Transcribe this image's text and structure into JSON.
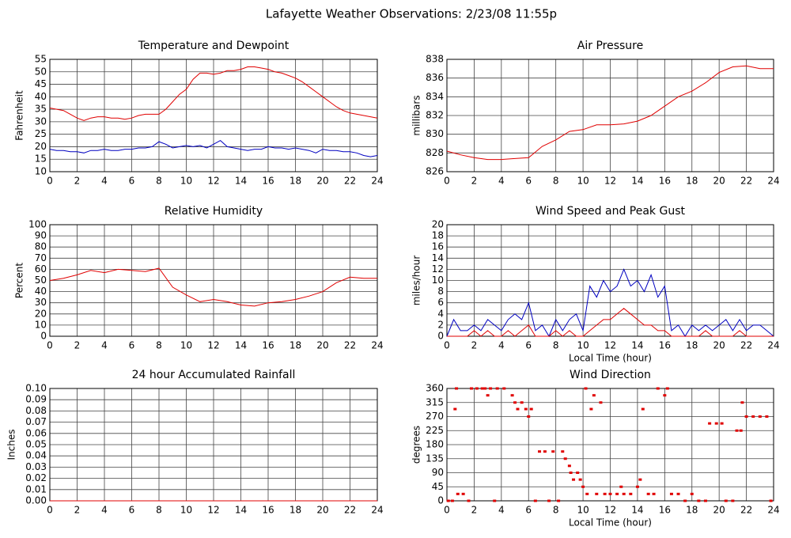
{
  "title": "Lafayette Weather Observations: 2/23/08 11:55p",
  "chart_data": [
    {
      "type": "line",
      "title": "Temperature and Dewpoint",
      "y_label": "Fahrenheit",
      "x": [
        0,
        0.5,
        1,
        1.5,
        2,
        2.5,
        3,
        3.5,
        4,
        4.5,
        5,
        5.5,
        6,
        6.5,
        7,
        7.5,
        8,
        8.5,
        9,
        9.5,
        10,
        10.5,
        11,
        11.5,
        12,
        12.5,
        13,
        13.5,
        14,
        14.5,
        15,
        15.5,
        16,
        16.5,
        17,
        17.5,
        18,
        18.5,
        19,
        19.5,
        20,
        20.5,
        21,
        21.5,
        22,
        22.5,
        23,
        23.5,
        24
      ],
      "xlim": [
        0,
        24
      ],
      "xticks": [
        0,
        2,
        4,
        6,
        8,
        10,
        12,
        14,
        16,
        18,
        20,
        22,
        24
      ],
      "ylim": [
        10,
        55
      ],
      "yticks": [
        10,
        15,
        20,
        25,
        30,
        35,
        40,
        45,
        50,
        55
      ],
      "grid": true,
      "series": [
        {
          "color": "#e00000",
          "values": [
            35.5,
            35,
            34.5,
            33,
            31.5,
            30.5,
            31.5,
            32,
            32,
            31.5,
            31.5,
            31,
            31.5,
            32.5,
            33,
            33,
            33,
            35,
            38,
            41,
            43,
            47,
            49.5,
            49.5,
            49,
            49.5,
            50.5,
            50.5,
            51,
            52,
            52,
            51.5,
            51,
            50,
            49.5,
            48.5,
            47.5,
            46,
            44,
            42,
            40,
            38,
            36,
            34.5,
            33.5,
            33,
            32.5,
            32,
            31.5
          ]
        },
        {
          "color": "#0000c0",
          "values": [
            19,
            18.5,
            18.5,
            18,
            18,
            17.5,
            18.5,
            18.5,
            19,
            18.5,
            18.5,
            19,
            19,
            19.5,
            19.5,
            20,
            22,
            21,
            19.5,
            20,
            20.5,
            20,
            20.5,
            19.5,
            21,
            22.5,
            20,
            19.5,
            19,
            18.5,
            19,
            19,
            20,
            19.5,
            19.5,
            19,
            19.5,
            19,
            18.5,
            17.5,
            19,
            18.5,
            18.5,
            18,
            18,
            17.5,
            16.5,
            16,
            16.5
          ]
        }
      ]
    },
    {
      "type": "line",
      "title": "Air Pressure",
      "y_label": "millibars",
      "x": [
        0,
        1,
        2,
        3,
        4,
        5,
        6,
        7,
        8,
        9,
        10,
        11,
        12,
        13,
        14,
        15,
        16,
        17,
        18,
        19,
        20,
        21,
        22,
        23,
        24
      ],
      "xlim": [
        0,
        24
      ],
      "xticks": [
        0,
        2,
        4,
        6,
        8,
        10,
        12,
        14,
        16,
        18,
        20,
        22,
        24
      ],
      "ylim": [
        826,
        838
      ],
      "yticks": [
        826,
        828,
        830,
        832,
        834,
        836,
        838
      ],
      "grid": true,
      "series": [
        {
          "color": "#e00000",
          "values": [
            828.2,
            827.8,
            827.5,
            827.3,
            827.3,
            827.4,
            827.5,
            828.7,
            829.4,
            830.3,
            830.5,
            831,
            831,
            831.1,
            831.4,
            832,
            833,
            834,
            834.6,
            835.5,
            836.6,
            837.2,
            837.3,
            837,
            837
          ]
        }
      ]
    },
    {
      "type": "line",
      "title": "Relative Humidity",
      "y_label": "Percent",
      "x": [
        0,
        1,
        2,
        3,
        4,
        5,
        6,
        7,
        8,
        9,
        10,
        11,
        12,
        13,
        14,
        15,
        16,
        17,
        18,
        19,
        20,
        21,
        22,
        23,
        24
      ],
      "xlim": [
        0,
        24
      ],
      "xticks": [
        0,
        2,
        4,
        6,
        8,
        10,
        12,
        14,
        16,
        18,
        20,
        22,
        24
      ],
      "ylim": [
        0,
        100
      ],
      "yticks": [
        0,
        10,
        20,
        30,
        40,
        50,
        60,
        70,
        80,
        90,
        100
      ],
      "grid": true,
      "series": [
        {
          "color": "#e00000",
          "values": [
            50,
            52,
            55,
            59,
            57,
            60,
            59,
            58,
            61,
            44,
            37,
            31,
            33,
            31,
            28,
            27,
            30,
            31,
            33,
            36,
            40,
            48,
            53,
            52,
            52
          ]
        }
      ]
    },
    {
      "type": "line",
      "title": "Wind Speed and Peak Gust",
      "y_label": "miles/hour",
      "x_label": "Local Time (hour)",
      "x": [
        0,
        0.5,
        1,
        1.5,
        2,
        2.5,
        3,
        3.5,
        4,
        4.5,
        5,
        5.5,
        6,
        6.5,
        7,
        7.5,
        8,
        8.5,
        9,
        9.5,
        10,
        10.5,
        11,
        11.5,
        12,
        12.5,
        13,
        13.5,
        14,
        14.5,
        15,
        15.5,
        16,
        16.5,
        17,
        17.5,
        18,
        18.5,
        19,
        19.5,
        20,
        20.5,
        21,
        21.5,
        22,
        22.5,
        23,
        23.5,
        24
      ],
      "xlim": [
        0,
        24
      ],
      "xticks": [
        0,
        2,
        4,
        6,
        8,
        10,
        12,
        14,
        16,
        18,
        20,
        22,
        24
      ],
      "ylim": [
        0,
        20
      ],
      "yticks": [
        0,
        2,
        4,
        6,
        8,
        10,
        12,
        14,
        16,
        18,
        20
      ],
      "grid": true,
      "series": [
        {
          "color": "#0000c0",
          "values": [
            0,
            3,
            1,
            1,
            2,
            1,
            3,
            2,
            1,
            3,
            4,
            3,
            6,
            1,
            2,
            0,
            3,
            1,
            3,
            4,
            1,
            9,
            7,
            10,
            8,
            9,
            12,
            9,
            10,
            8,
            11,
            7,
            9,
            1,
            2,
            0,
            2,
            1,
            2,
            1,
            2,
            3,
            1,
            3,
            1,
            2,
            2,
            1,
            0
          ]
        },
        {
          "color": "#e00000",
          "values": [
            0,
            0,
            0,
            0,
            1,
            0,
            1,
            0,
            0,
            1,
            0,
            1,
            2,
            0,
            0,
            0,
            1,
            0,
            1,
            0,
            0,
            1,
            2,
            3,
            3,
            4,
            5,
            4,
            3,
            2,
            2,
            1,
            1,
            0,
            0,
            0,
            0,
            0,
            1,
            0,
            0,
            0,
            0,
            1,
            0,
            0,
            0,
            0,
            0
          ]
        }
      ]
    },
    {
      "type": "line",
      "title": "24 hour Accumulated Rainfall",
      "y_label": "Inches",
      "x": [
        0,
        24
      ],
      "xlim": [
        0,
        24
      ],
      "xticks": [
        0,
        2,
        4,
        6,
        8,
        10,
        12,
        14,
        16,
        18,
        20,
        22,
        24
      ],
      "ylim": [
        0,
        0.1
      ],
      "yticks": [
        {
          "value": 0,
          "label": "0.00"
        },
        0.01,
        0.02,
        0.03,
        0.04,
        0.05,
        0.06,
        0.07,
        0.08,
        0.09,
        {
          "value": 0.1,
          "label": "0.10"
        }
      ],
      "grid": true,
      "series": [
        {
          "color": "#e00000",
          "values": [
            0,
            0
          ]
        }
      ]
    },
    {
      "type": "scatter",
      "title": "Wind Direction",
      "y_label": "degrees",
      "x_label": "Local Time (hour)",
      "x": [
        0.1,
        0.4,
        0.6,
        0.7,
        0.8,
        1.2,
        1.6,
        1.8,
        2.2,
        2.6,
        2.8,
        3.0,
        3.2,
        3.5,
        3.7,
        4.2,
        4.8,
        5,
        5.2,
        5.5,
        5.8,
        6,
        6.2,
        6.5,
        6.8,
        7.2,
        7.5,
        7.8,
        8.2,
        8.5,
        8.7,
        9,
        9.1,
        9.3,
        9.6,
        9.8,
        10,
        10.2,
        10.3,
        10.6,
        10.8,
        11,
        11.3,
        11.6,
        12,
        12.5,
        12.8,
        13,
        13.5,
        14,
        14.2,
        14.4,
        14.8,
        15.2,
        15.5,
        16,
        16.2,
        16.5,
        17,
        17.5,
        18,
        18.5,
        19,
        19.3,
        19.8,
        20.2,
        20.5,
        21,
        21.3,
        21.6,
        21.7,
        22,
        22.5,
        23,
        23.5,
        23.8
      ],
      "xlim": [
        0,
        24
      ],
      "xticks": [
        0,
        2,
        4,
        6,
        8,
        10,
        12,
        14,
        16,
        18,
        20,
        22,
        24
      ],
      "ylim": [
        0,
        360
      ],
      "yticks": [
        0,
        45,
        90,
        135,
        180,
        225,
        270,
        315,
        360
      ],
      "grid": true,
      "series": [
        {
          "color": "#e00000",
          "values": [
            0,
            0,
            294,
            360,
            22,
            22,
            0,
            360,
            360,
            360,
            360,
            338,
            360,
            0,
            360,
            360,
            338,
            315,
            294,
            315,
            294,
            270,
            294,
            0,
            158,
            158,
            0,
            158,
            0,
            158,
            135,
            112,
            90,
            68,
            90,
            68,
            45,
            360,
            22,
            294,
            338,
            22,
            315,
            22,
            22,
            22,
            45,
            22,
            22,
            45,
            68,
            294,
            22,
            22,
            360,
            338,
            360,
            22,
            22,
            0,
            22,
            0,
            0,
            248,
            248,
            248,
            0,
            0,
            225,
            225,
            315,
            270,
            270,
            270,
            270,
            0
          ]
        }
      ]
    }
  ]
}
